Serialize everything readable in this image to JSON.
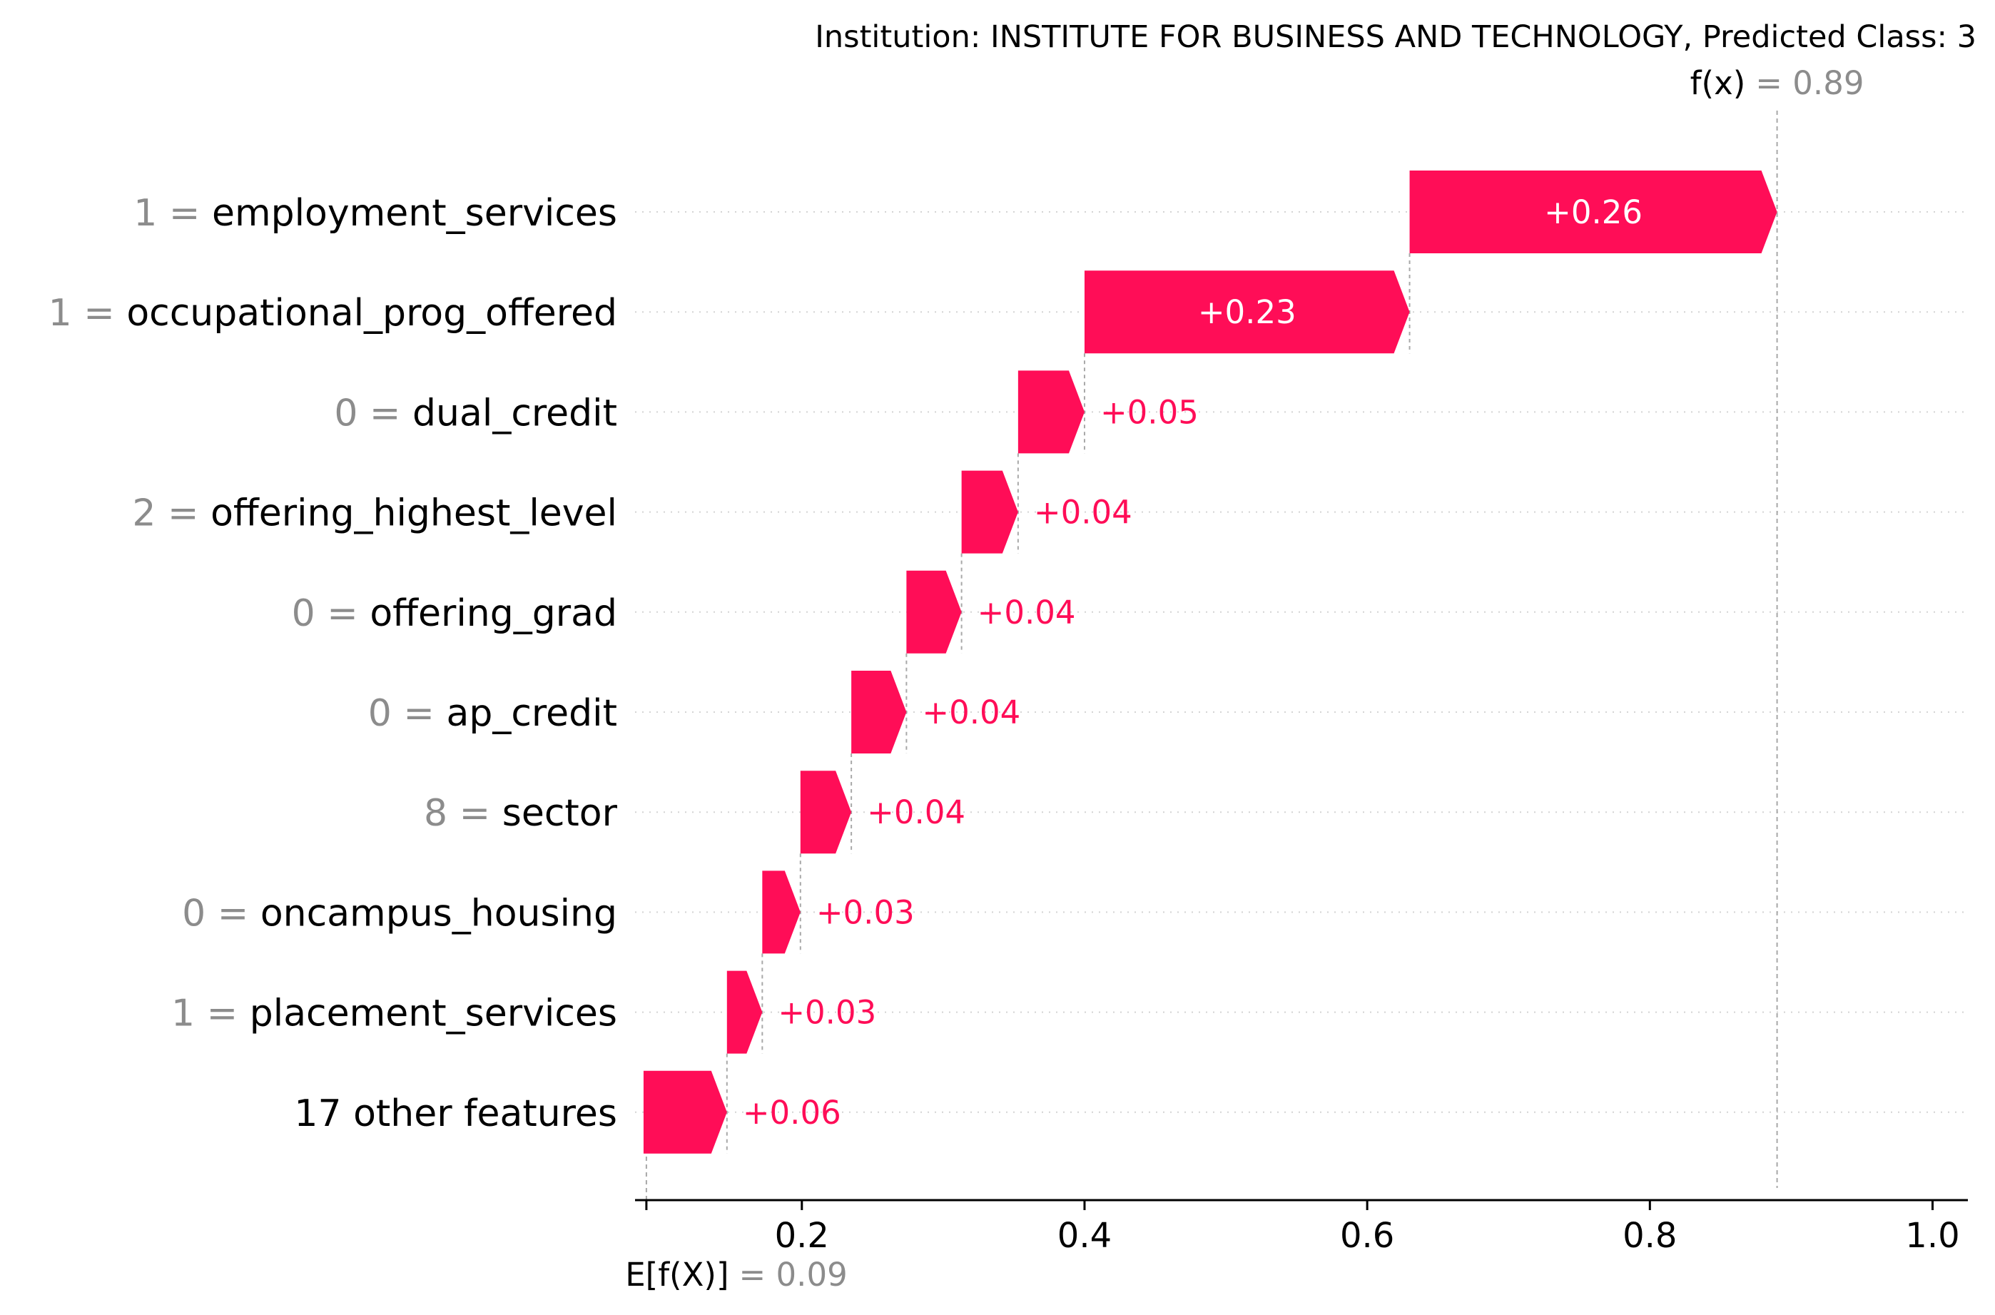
{
  "chart_data": {
    "type": "waterfall",
    "title": "Institution: INSTITUTE FOR BUSINESS AND TECHNOLOGY, Predicted Class: 3",
    "base_value": 0.09,
    "base_label": "E[f(X)]",
    "base_value_text": "= 0.09",
    "output_value": 0.89,
    "output_label": "f(x)",
    "output_value_text": "= 0.89",
    "xlim": [
      0.085,
      1.025
    ],
    "x_ticks": [
      0.2,
      0.4,
      0.6,
      0.8,
      1.0
    ],
    "x_tick_labels": [
      "0.2",
      "0.4",
      "0.6",
      "0.8",
      "1.0"
    ],
    "grid": "horizontal dotted rows",
    "positive_color": "#ff0d57",
    "features": [
      {
        "value": "1",
        "name": "employment_services",
        "contribution": 0.26,
        "label": "+0.26",
        "start": 0.63,
        "end": 0.89
      },
      {
        "value": "1",
        "name": "occupational_prog_offered",
        "contribution": 0.23,
        "label": "+0.23",
        "start": 0.4,
        "end": 0.63
      },
      {
        "value": "0",
        "name": "dual_credit",
        "contribution": 0.05,
        "label": "+0.05",
        "start": 0.353,
        "end": 0.4
      },
      {
        "value": "2",
        "name": "offering_highest_level",
        "contribution": 0.04,
        "label": "+0.04",
        "start": 0.313,
        "end": 0.353
      },
      {
        "value": "0",
        "name": "offering_grad",
        "contribution": 0.04,
        "label": "+0.04",
        "start": 0.274,
        "end": 0.313
      },
      {
        "value": "0",
        "name": "ap_credit",
        "contribution": 0.04,
        "label": "+0.04",
        "start": 0.235,
        "end": 0.274
      },
      {
        "value": "8",
        "name": "sector",
        "contribution": 0.04,
        "label": "+0.04",
        "start": 0.199,
        "end": 0.235
      },
      {
        "value": "0",
        "name": "oncampus_housing",
        "contribution": 0.03,
        "label": "+0.03",
        "start": 0.172,
        "end": 0.199
      },
      {
        "value": "1",
        "name": "placement_services",
        "contribution": 0.03,
        "label": "+0.03",
        "start": 0.147,
        "end": 0.172
      },
      {
        "value": "",
        "name": "17 other features",
        "contribution": 0.06,
        "label": "+0.06",
        "start": 0.088,
        "end": 0.147
      }
    ]
  }
}
